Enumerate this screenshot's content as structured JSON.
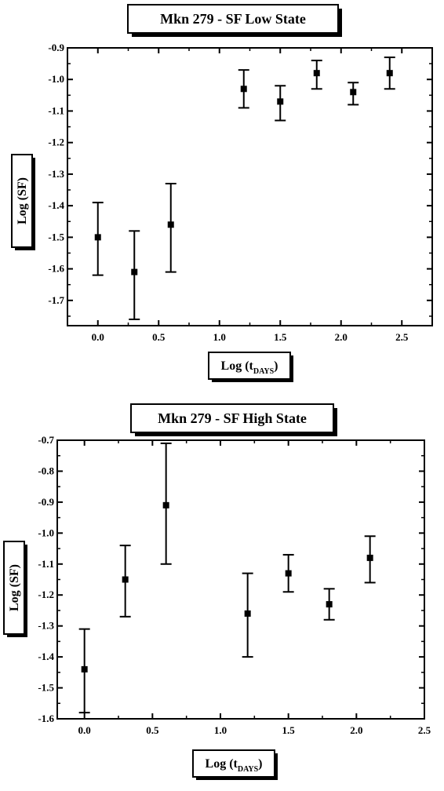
{
  "chart_data": [
    {
      "type": "scatter",
      "title": "Mkn 279 - SF Low State",
      "xlabel": "Log (t",
      "xlabel_sub": "DAYS",
      "xlabel_close": ")",
      "ylabel": "Log (SF)",
      "xlim": [
        -0.25,
        2.75
      ],
      "ylim": [
        -1.78,
        -0.9
      ],
      "x_ticks": [
        0.0,
        0.5,
        1.0,
        1.5,
        2.0,
        2.5
      ],
      "x_tick_labels": [
        "0.0",
        "0.5",
        "1.0",
        "1.5",
        "2.0",
        "2.5"
      ],
      "y_ticks": [
        -0.9,
        -1.0,
        -1.1,
        -1.2,
        -1.3,
        -1.4,
        -1.5,
        -1.6,
        -1.7
      ],
      "y_tick_labels": [
        "-0.9",
        "-1.0",
        "-1.1",
        "-1.2",
        "-1.3",
        "-1.4",
        "-1.5",
        "-1.6",
        "-1.7"
      ],
      "grid": false,
      "series": [
        {
          "points": [
            {
              "x": 0.0,
              "y": -1.5,
              "ylow": -1.62,
              "yhigh": -1.39
            },
            {
              "x": 0.3,
              "y": -1.61,
              "ylow": -1.76,
              "yhigh": -1.48
            },
            {
              "x": 0.6,
              "y": -1.46,
              "ylow": -1.61,
              "yhigh": -1.33
            },
            {
              "x": 1.2,
              "y": -1.03,
              "ylow": -1.09,
              "yhigh": -0.97
            },
            {
              "x": 1.5,
              "y": -1.07,
              "ylow": -1.13,
              "yhigh": -1.02
            },
            {
              "x": 1.8,
              "y": -0.98,
              "ylow": -1.03,
              "yhigh": -0.94
            },
            {
              "x": 2.1,
              "y": -1.04,
              "ylow": -1.08,
              "yhigh": -1.01
            },
            {
              "x": 2.4,
              "y": -0.98,
              "ylow": -1.03,
              "yhigh": -0.93
            }
          ]
        }
      ]
    },
    {
      "type": "scatter",
      "title": "Mkn 279 - SF High State",
      "xlabel": "Log (t",
      "xlabel_sub": "DAYS",
      "xlabel_close": ")",
      "ylabel": "Log (SF)",
      "xlim": [
        -0.2,
        2.5
      ],
      "ylim": [
        -1.6,
        -0.7
      ],
      "x_ticks": [
        0.0,
        0.5,
        1.0,
        1.5,
        2.0,
        2.5
      ],
      "x_tick_labels": [
        "0.0",
        "0.5",
        "1.0",
        "1.5",
        "2.0",
        "2.5"
      ],
      "y_ticks": [
        -0.7,
        -0.8,
        -0.9,
        -1.0,
        -1.1,
        -1.2,
        -1.3,
        -1.4,
        -1.5,
        -1.6
      ],
      "y_tick_labels": [
        "-0.7",
        "-0.8",
        "-0.9",
        "-1.0",
        "-1.1",
        "-1.2",
        "-1.3",
        "-1.4",
        "-1.5",
        "-1.6"
      ],
      "grid": false,
      "series": [
        {
          "points": [
            {
              "x": 0.0,
              "y": -1.44,
              "ylow": -1.58,
              "yhigh": -1.31
            },
            {
              "x": 0.3,
              "y": -1.15,
              "ylow": -1.27,
              "yhigh": -1.04
            },
            {
              "x": 0.6,
              "y": -0.91,
              "ylow": -1.1,
              "yhigh": -0.71
            },
            {
              "x": 1.2,
              "y": -1.26,
              "ylow": -1.4,
              "yhigh": -1.13
            },
            {
              "x": 1.5,
              "y": -1.13,
              "ylow": -1.19,
              "yhigh": -1.07
            },
            {
              "x": 1.8,
              "y": -1.23,
              "ylow": -1.28,
              "yhigh": -1.18
            },
            {
              "x": 2.1,
              "y": -1.08,
              "ylow": -1.16,
              "yhigh": -1.01
            }
          ]
        }
      ]
    }
  ]
}
